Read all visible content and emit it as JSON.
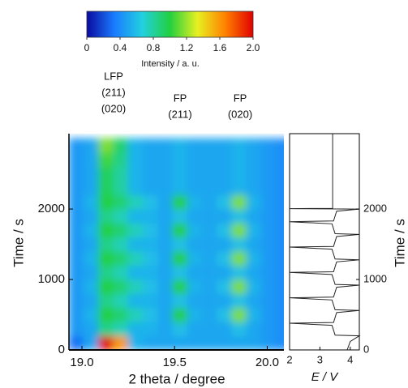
{
  "chart_data": [
    {
      "type": "heatmap",
      "xlabel": "2 theta / degree",
      "ylabel": "Time / s",
      "xlim": [
        18.93,
        20.09
      ],
      "ylim": [
        0,
        3070
      ],
      "xticks": [
        {
          "value": 19,
          "label": "19.0"
        },
        19.5,
        {
          "value": 20,
          "label": "20.0"
        }
      ],
      "yticks": [
        0,
        1000,
        2000
      ],
      "x": [
        18.97,
        19.05,
        19.13,
        19.21,
        19.29,
        19.37,
        19.45,
        19.53,
        19.61,
        19.69,
        19.77,
        19.85,
        19.93,
        20.01,
        20.09
      ],
      "y": [
        100,
        300,
        500,
        700,
        900,
        1100,
        1300,
        1500,
        1700,
        1900,
        2100,
        2300,
        2500,
        2700,
        2900
      ],
      "values": [
        [
          0.3,
          0.5,
          2.0,
          1.6,
          0.55,
          0.5,
          0.5,
          0.5,
          0.5,
          0.5,
          0.5,
          0.5,
          0.5,
          0.45,
          0.4
        ],
        [
          0.45,
          0.5,
          0.85,
          0.75,
          0.55,
          0.55,
          0.5,
          0.6,
          0.5,
          0.5,
          0.5,
          0.6,
          0.5,
          0.45,
          0.4
        ],
        [
          0.45,
          0.55,
          1.0,
          0.9,
          0.75,
          0.6,
          0.5,
          1.0,
          0.55,
          0.5,
          0.6,
          1.15,
          0.55,
          0.45,
          0.4
        ],
        [
          0.45,
          0.5,
          0.85,
          0.75,
          0.55,
          0.55,
          0.5,
          0.6,
          0.5,
          0.5,
          0.5,
          0.6,
          0.5,
          0.45,
          0.4
        ],
        [
          0.45,
          0.55,
          1.0,
          0.9,
          0.75,
          0.6,
          0.5,
          1.0,
          0.55,
          0.5,
          0.6,
          1.15,
          0.55,
          0.45,
          0.4
        ],
        [
          0.45,
          0.5,
          0.85,
          0.75,
          0.55,
          0.55,
          0.5,
          0.6,
          0.5,
          0.5,
          0.5,
          0.6,
          0.5,
          0.45,
          0.4
        ],
        [
          0.45,
          0.55,
          1.0,
          0.9,
          0.75,
          0.6,
          0.5,
          1.0,
          0.55,
          0.5,
          0.6,
          1.15,
          0.55,
          0.45,
          0.4
        ],
        [
          0.45,
          0.5,
          0.85,
          0.75,
          0.55,
          0.55,
          0.5,
          0.6,
          0.5,
          0.5,
          0.5,
          0.6,
          0.5,
          0.45,
          0.4
        ],
        [
          0.45,
          0.55,
          1.0,
          0.9,
          0.75,
          0.6,
          0.5,
          1.0,
          0.55,
          0.5,
          0.6,
          1.15,
          0.55,
          0.45,
          0.4
        ],
        [
          0.45,
          0.5,
          0.85,
          0.75,
          0.55,
          0.55,
          0.5,
          0.6,
          0.5,
          0.5,
          0.5,
          0.6,
          0.5,
          0.45,
          0.4
        ],
        [
          0.45,
          0.55,
          1.0,
          0.9,
          0.75,
          0.6,
          0.5,
          1.0,
          0.55,
          0.5,
          0.6,
          1.15,
          0.55,
          0.45,
          0.4
        ],
        [
          0.45,
          0.5,
          0.95,
          0.8,
          0.55,
          0.5,
          0.5,
          0.55,
          0.5,
          0.5,
          0.5,
          0.55,
          0.5,
          0.45,
          0.4
        ],
        [
          0.45,
          0.5,
          0.95,
          0.8,
          0.55,
          0.5,
          0.5,
          0.55,
          0.5,
          0.5,
          0.5,
          0.55,
          0.5,
          0.45,
          0.4
        ],
        [
          0.45,
          0.5,
          1.05,
          0.85,
          0.55,
          0.5,
          0.5,
          0.55,
          0.5,
          0.5,
          0.5,
          0.55,
          0.5,
          0.45,
          0.4
        ],
        [
          0.45,
          0.5,
          1.15,
          0.9,
          0.55,
          0.5,
          0.5,
          0.55,
          0.5,
          0.5,
          0.5,
          0.55,
          0.5,
          0.45,
          0.4
        ]
      ],
      "colorbar": {
        "label": "Intensity / a. u.",
        "clim": [
          0,
          2
        ],
        "ticks": [
          0,
          0.4,
          0.8,
          1.2,
          1.6,
          {
            "value": 2,
            "label": "2.0"
          }
        ],
        "colors": [
          "#0a0aa0",
          "#1a7cff",
          "#22d0e0",
          "#22d040",
          "#e8f020",
          "#ff8000",
          "#e00000"
        ]
      },
      "annotations": [
        [
          "LFP",
          "(211)",
          "(020)"
        ],
        [
          "FP",
          "(211)"
        ],
        [
          "FP",
          "(020)"
        ]
      ]
    },
    {
      "type": "line",
      "xlabel": "E / V",
      "ylabel": "Time / s",
      "xlim": [
        2,
        4.3
      ],
      "ylim": [
        0,
        3070
      ],
      "xticks": [
        2,
        3,
        4
      ],
      "yticks": [
        0,
        1000,
        2000
      ],
      "color": "#222222",
      "t": [
        0,
        120,
        200,
        210,
        350,
        380,
        390,
        530,
        560,
        570,
        710,
        740,
        750,
        890,
        920,
        930,
        1070,
        1100,
        1110,
        1250,
        1280,
        1290,
        1430,
        1460,
        1470,
        1610,
        1640,
        1650,
        1790,
        1820,
        1830,
        1970,
        2000,
        2005,
        2010,
        3070
      ],
      "values": [
        3.9,
        4.0,
        4.3,
        3.5,
        3.4,
        2.0,
        3.45,
        3.55,
        4.3,
        3.5,
        3.4,
        2.0,
        3.45,
        3.55,
        4.3,
        3.5,
        3.4,
        2.0,
        3.45,
        3.55,
        4.3,
        3.5,
        3.4,
        2.0,
        3.45,
        3.55,
        4.3,
        3.5,
        3.4,
        2.0,
        3.45,
        3.55,
        4.3,
        2.0,
        3.42,
        3.42
      ]
    }
  ]
}
